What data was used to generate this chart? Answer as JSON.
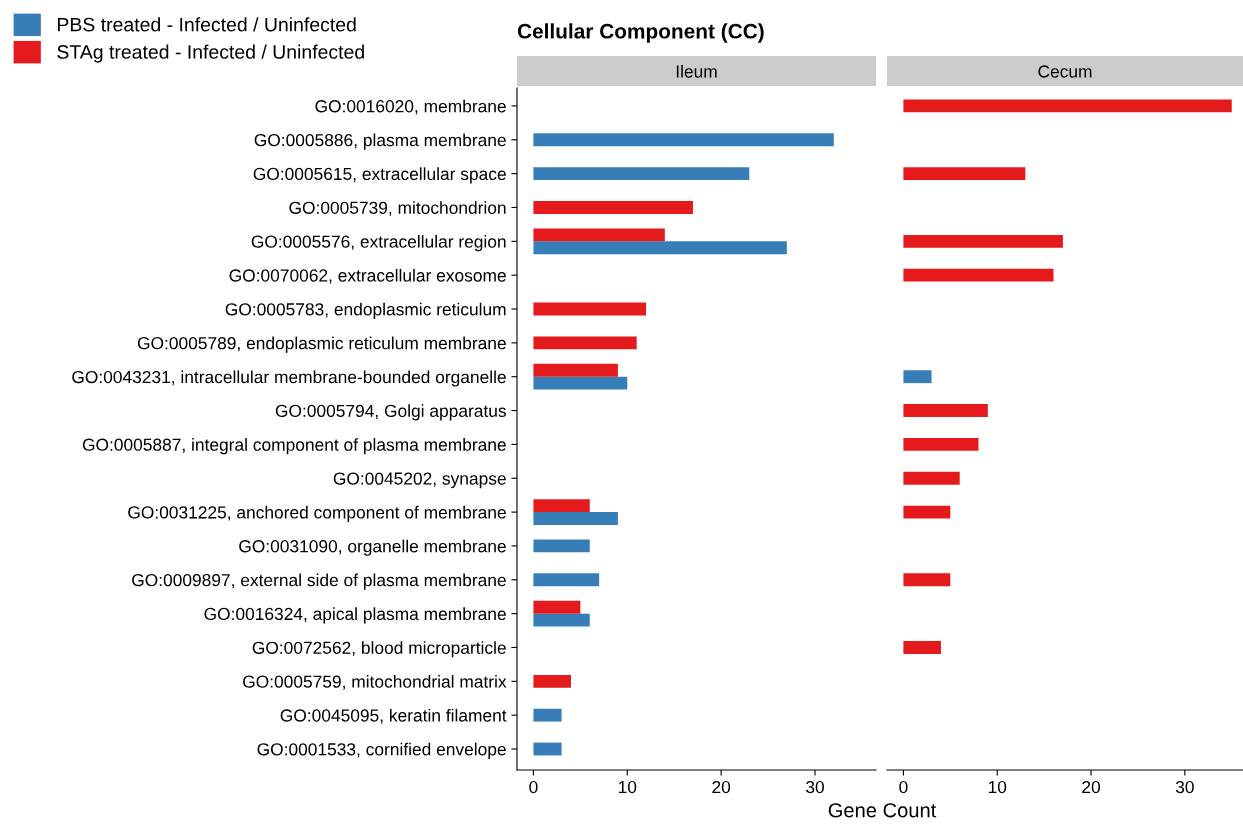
{
  "chart_data": [
    {
      "type": "bar",
      "orientation": "horizontal",
      "title": "Cellular Component (CC)",
      "subtitle": "Ileum",
      "xlabel": "Gene Count",
      "categories": [
        "GO:0016020, membrane",
        "GO:0005886, plasma membrane",
        "GO:0005615, extracellular space",
        "GO:0005739, mitochondrion",
        "GO:0005576, extracellular region",
        "GO:0070062, extracellular exosome",
        "GO:0005783, endoplasmic reticulum",
        "GO:0005789, endoplasmic reticulum membrane",
        "GO:0043231, intracellular membrane-bounded organelle",
        "GO:0005794, Golgi apparatus",
        "GO:0005887, integral component of plasma membrane",
        "GO:0045202, synapse",
        "GO:0031225, anchored component of membrane",
        "GO:0031090, organelle membrane",
        "GO:0009897, external side of plasma membrane",
        "GO:0016324, apical plasma membrane",
        "GO:0072562, blood microparticle",
        "GO:0005759, mitochondrial matrix",
        "GO:0045095, keratin filament",
        "GO:0001533, cornified envelope"
      ],
      "series": [
        {
          "name": "PBS treated - Infected / Uninfected",
          "color": "#377eb8",
          "values": [
            null,
            32,
            23,
            null,
            27,
            null,
            null,
            null,
            10,
            null,
            null,
            null,
            9,
            6,
            7,
            6,
            null,
            null,
            3,
            3
          ]
        },
        {
          "name": "STAg treated - Infected / Uninfected",
          "color": "#e41a1c",
          "values": [
            null,
            null,
            null,
            17,
            14,
            null,
            12,
            11,
            9,
            null,
            null,
            null,
            6,
            null,
            null,
            5,
            null,
            4,
            null,
            null
          ]
        }
      ],
      "xlim": [
        -1.75,
        36.5
      ],
      "xticks": [
        0,
        10,
        20,
        30
      ],
      "legend": "top left",
      "grid": false
    },
    {
      "type": "bar",
      "orientation": "horizontal",
      "subtitle": "Cecum",
      "categories": [
        null,
        null,
        null,
        null,
        null,
        null,
        null,
        null,
        null,
        null,
        null,
        null,
        null,
        null,
        null,
        null,
        null,
        null,
        null,
        null
      ],
      "series": [
        {
          "color": "#377eb8",
          "values": [
            null,
            null,
            null,
            null,
            null,
            null,
            null,
            null,
            3,
            null,
            null,
            null,
            null,
            null,
            null,
            null,
            null,
            null,
            null,
            null
          ]
        },
        {
          "color": "#e41a1c",
          "values": [
            35,
            null,
            13,
            null,
            17,
            16,
            null,
            null,
            null,
            9,
            8,
            6,
            5,
            null,
            5,
            null,
            4,
            null,
            null,
            null
          ]
        }
      ],
      "xlim": [
        -1.75,
        36.2
      ],
      "xticks": [
        0,
        10,
        20,
        30
      ],
      "tick_labels": "x",
      "grid": false
    }
  ]
}
